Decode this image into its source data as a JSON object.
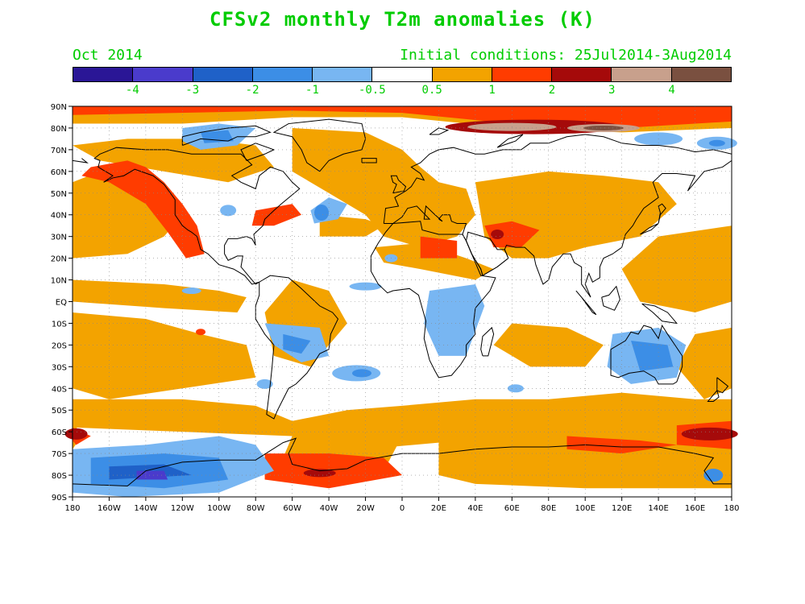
{
  "title": "CFSv2 monthly T2m anomalies (K)",
  "subtitle_left": "Oct 2014",
  "subtitle_right": "Initial conditions: 25Jul2014-3Aug2014",
  "text_color": "#00cc00",
  "colorbar": {
    "colors": [
      "#2a1696",
      "#4a3bcc",
      "#1f61c8",
      "#3c8ee6",
      "#78b6f2",
      "#ffffff",
      "#f3a300",
      "#ff3c00",
      "#a50a0a",
      "#c8a08c",
      "#7a5040"
    ],
    "labels": [
      "-4",
      "-3",
      "-2",
      "-1",
      "-0.5",
      "0.5",
      "1",
      "2",
      "3",
      "4"
    ]
  },
  "map": {
    "lat_labels": [
      "90N",
      "80N",
      "70N",
      "60N",
      "50N",
      "40N",
      "30N",
      "20N",
      "10N",
      "EQ",
      "10S",
      "20S",
      "30S",
      "40S",
      "50S",
      "60S",
      "70S",
      "80S",
      "90S"
    ],
    "lon_labels": [
      "180",
      "160W",
      "140W",
      "120W",
      "100W",
      "80W",
      "60W",
      "40W",
      "20W",
      "0",
      "20E",
      "40E",
      "60E",
      "80E",
      "100E",
      "120E",
      "140E",
      "160E",
      "180"
    ]
  }
}
